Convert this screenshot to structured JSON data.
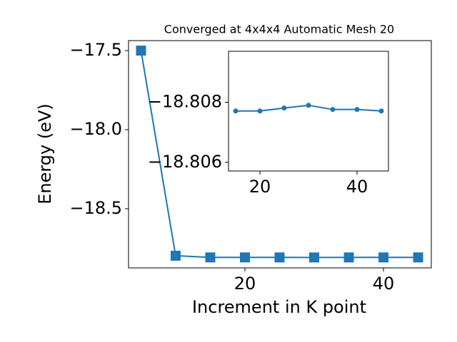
{
  "chart_data": [
    {
      "type": "line",
      "title": "Converged at 4x4x4 Automatic Mesh 20",
      "x_label": "Increment in K point",
      "y_label": "Energy (eV)",
      "x": [
        5,
        10,
        15,
        20,
        25,
        30,
        35,
        40,
        45
      ],
      "series": [
        {
          "color": "#1f77b4",
          "marker": "square",
          "values": [
            -17.5,
            -18.797,
            -18.8077,
            -18.8077,
            -18.8078,
            -18.8079,
            -18.8078,
            -18.8078,
            -18.8077
          ]
        }
      ],
      "xlim": [
        3.2,
        46.9
      ],
      "ylim": [
        -18.874,
        -17.437
      ],
      "xticks": [
        20,
        40
      ],
      "yticks": [
        {
          "value": -17.5,
          "label": "−17.5"
        },
        {
          "value": -18.0,
          "label": "−18.0"
        },
        {
          "value": -18.5,
          "label": "−18.5"
        }
      ]
    },
    {
      "type": "line",
      "x": [
        15,
        20,
        25,
        30,
        35,
        40,
        45
      ],
      "series": [
        {
          "color": "#1f77b4",
          "marker": "circle",
          "values": [
            -18.80771,
            -18.80771,
            -18.80781,
            -18.8079,
            -18.80776,
            -18.80776,
            -18.80771
          ]
        }
      ],
      "xlim": [
        13.53,
        46.47
      ],
      "ylim": [
        -18.80571,
        -18.8097
      ],
      "yinvert": true,
      "xticks": [
        20,
        40
      ],
      "yticks": [
        {
          "value": -18.808,
          "label": "−18.808"
        },
        {
          "value": -18.806,
          "label": "−18.806"
        }
      ]
    }
  ]
}
